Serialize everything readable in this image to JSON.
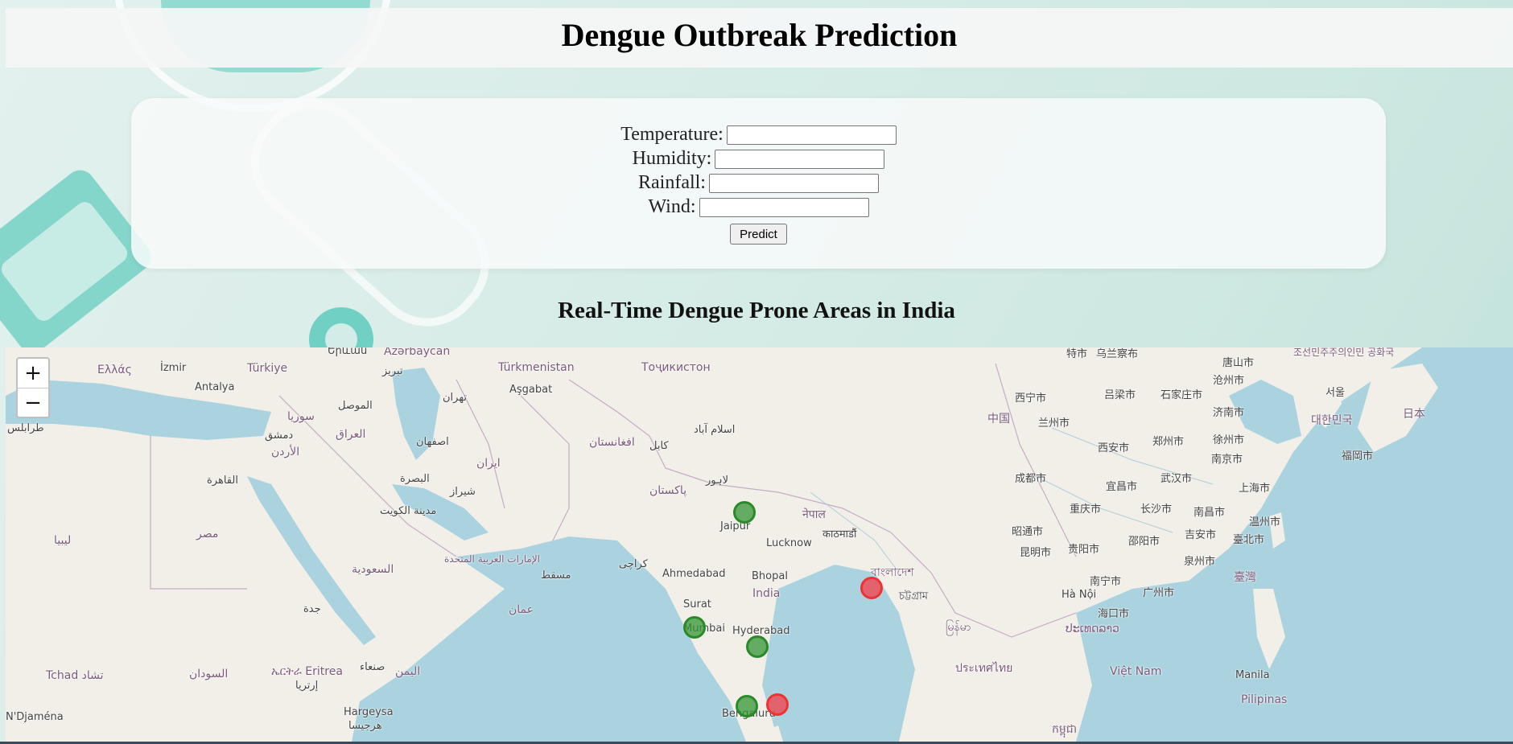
{
  "page": {
    "title": "Dengue Outbreak Prediction"
  },
  "form": {
    "fields": [
      {
        "label": "Temperature:",
        "value": ""
      },
      {
        "label": "Humidity:",
        "value": ""
      },
      {
        "label": "Rainfall:",
        "value": ""
      },
      {
        "label": "Wind:",
        "value": ""
      }
    ],
    "submit_label": "Predict"
  },
  "map": {
    "title": "Real-Time Dengue Prone Areas in India",
    "zoom_in": "+",
    "zoom_out": "−",
    "labels": {
      "ellada": "Ελλάς",
      "izmir": "İzmir",
      "turkiye": "Türkiye",
      "antalya": "Antalya",
      "yerevan": "Երևան",
      "azerbaycan": "Azərbaycan",
      "tabriz": "تبریز",
      "turkmenistan": "Türkmenistan",
      "ashgabat": "Aşgabat",
      "tajikistan": "Тоҷикистон",
      "tehran": "تهران",
      "mosul": "الموصل",
      "syria": "سوريا",
      "iraq": "العراق",
      "damascus": "دمشق",
      "tripoli": "طرابلس",
      "jordan": "الأردن",
      "cairo": "القاهرة",
      "egypt": "مصر",
      "libya": "ليبيا",
      "isfahan": "اصفهان",
      "iran": "ایران",
      "basra": "البصرة",
      "kuwait": "مدينة الكويت",
      "shiraz": "شیراز",
      "afghanistan": "افغانستان",
      "kabul": "کابل",
      "islamabad": "اسلام آباد",
      "lahore": "لاہور",
      "pakistan": "پاکستان",
      "saudi": "السعودية",
      "uae": "الإمارات العربية المتحدة",
      "muscat": "مسقط",
      "oman": "عمان",
      "karachi": "کراچی",
      "jeddah": "جدة",
      "sudan": "السودان",
      "tchad": "Tchad تشاد",
      "eritrea": "ኤርትራ Eritrea",
      "eritrea2": "إرتريا",
      "sanaa": "صنعاء",
      "yemen": "اليمن",
      "ndjamena": "N'Djaména",
      "hargeysa": "Hargeysa",
      "hargeysa2": "هرجيسا",
      "jaipur": "Jaipur",
      "lucknow": "Lucknow",
      "nepal": "नेपाल",
      "kathmandu": "काठमाडौं",
      "ahmedabad": "Ahmedabad",
      "bhopal": "Bhopal",
      "india": "India",
      "surat": "Surat",
      "mumbai": "Mumbai",
      "hyderabad": "Hyderabad",
      "bengaluru": "Bengaluru",
      "bangladesh": "বাংলাদেশ",
      "chittagong": "চট্টগ্রাম",
      "myanmar": "မြန်မာ",
      "thailand": "ประเทศไทย",
      "laos": "ປະເທດລາວ",
      "vietnam": "Việt Nam",
      "hanoi": "Hà Nội",
      "cambodia": "កម្ពុជា",
      "manila": "Manila",
      "pilipinas": "Pilipinas",
      "china": "中国",
      "xining": "西宁市",
      "lanzhou": "兰州市",
      "luliang": "吕梁市",
      "shijiazhuang": "石家庄市",
      "xian": "西安市",
      "zhengzhou": "郑州市",
      "xuzhou": "徐州市",
      "jinan": "济南市",
      "nanjing": "南京市",
      "chengdu": "成都市",
      "yichang": "宜昌市",
      "wuhan": "武汉市",
      "shanghai": "上海市",
      "chongqing": "重庆市",
      "changsha": "长沙市",
      "nanchang": "南昌市",
      "wenzhou": "温州市",
      "kunming": "昆明市",
      "guiyang": "贵阳市",
      "shaoyang": "邵阳市",
      "jian": "吉安市",
      "fuzhou": "福州市",
      "taipei": "臺北市",
      "zhaotong": "昭通市",
      "quanzhou": "泉州市",
      "taiwan": "臺灣",
      "nanning": "南宁市",
      "guangzhou": "广州市",
      "haikou": "海口市",
      "tangshan": "唐山市",
      "cangzhou": "沧州市",
      "korea": "대한민국",
      "seoul": "서울",
      "chosun": "조선민주주의인민 공화국",
      "japan": "日本",
      "fukuoka": "福岡市",
      "top1": "特市",
      "top2": "乌兰察布"
    },
    "markers": [
      {
        "name": "jaipur",
        "risk": "low"
      },
      {
        "name": "kolkata",
        "risk": "high"
      },
      {
        "name": "mumbai",
        "risk": "low"
      },
      {
        "name": "hyderabad",
        "risk": "low"
      },
      {
        "name": "bengaluru",
        "risk": "low"
      },
      {
        "name": "chennai",
        "risk": "high"
      }
    ],
    "colors": {
      "low_risk": "#2a8a2a",
      "high_risk": "#e33333",
      "water": "#aad3df",
      "land": "#f2efe9"
    }
  }
}
